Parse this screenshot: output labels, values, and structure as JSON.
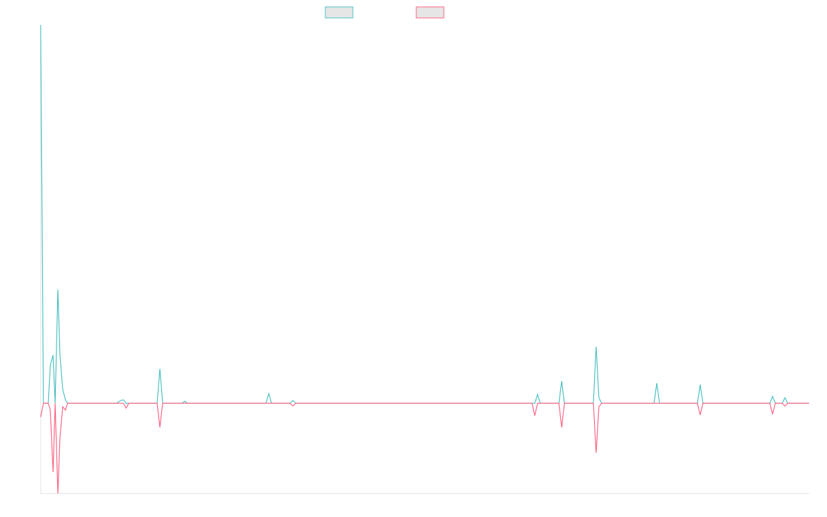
{
  "chart_data": {
    "type": "line",
    "x": [
      0,
      4,
      11,
      14,
      18,
      21,
      25,
      28,
      32,
      36,
      39,
      110,
      116,
      120,
      124,
      128,
      169,
      173,
      177,
      205,
      209,
      213,
      327,
      331,
      335,
      362,
      366,
      370,
      713,
      717,
      721,
      725,
      752,
      756,
      760,
      802,
      806,
      810,
      814,
      890,
      894,
      898,
      953,
      957,
      961,
      1058,
      1062,
      1066,
      1076,
      1080,
      1084,
      1115
    ],
    "series": [
      {
        "color": "#4bc0c0",
        "values": [
          549,
          0,
          0,
          55,
          70,
          0,
          165,
          70,
          20,
          5,
          0,
          0,
          4,
          5,
          0,
          0,
          0,
          50,
          0,
          0,
          3,
          0,
          0,
          14,
          0,
          0,
          4,
          0,
          0,
          0,
          13,
          0,
          0,
          32,
          0,
          0,
          82,
          8,
          0,
          0,
          29,
          0,
          0,
          27,
          0,
          0,
          10,
          0,
          0,
          8,
          0,
          0
        ]
      },
      {
        "color": "#ff6384",
        "values": [
          -20,
          0,
          0,
          -10,
          -100,
          0,
          -131,
          -50,
          -5,
          -10,
          0,
          0,
          0,
          0,
          -7,
          0,
          0,
          -35,
          0,
          0,
          0,
          0,
          0,
          0,
          0,
          0,
          -4,
          0,
          0,
          -18,
          0,
          0,
          0,
          -35,
          0,
          0,
          -72,
          -5,
          0,
          0,
          0,
          0,
          0,
          -17,
          0,
          0,
          -16,
          0,
          0,
          -4,
          0,
          0
        ]
      }
    ],
    "xlim": [
      0,
      1115
    ],
    "ylim": [
      -131,
      549
    ]
  }
}
